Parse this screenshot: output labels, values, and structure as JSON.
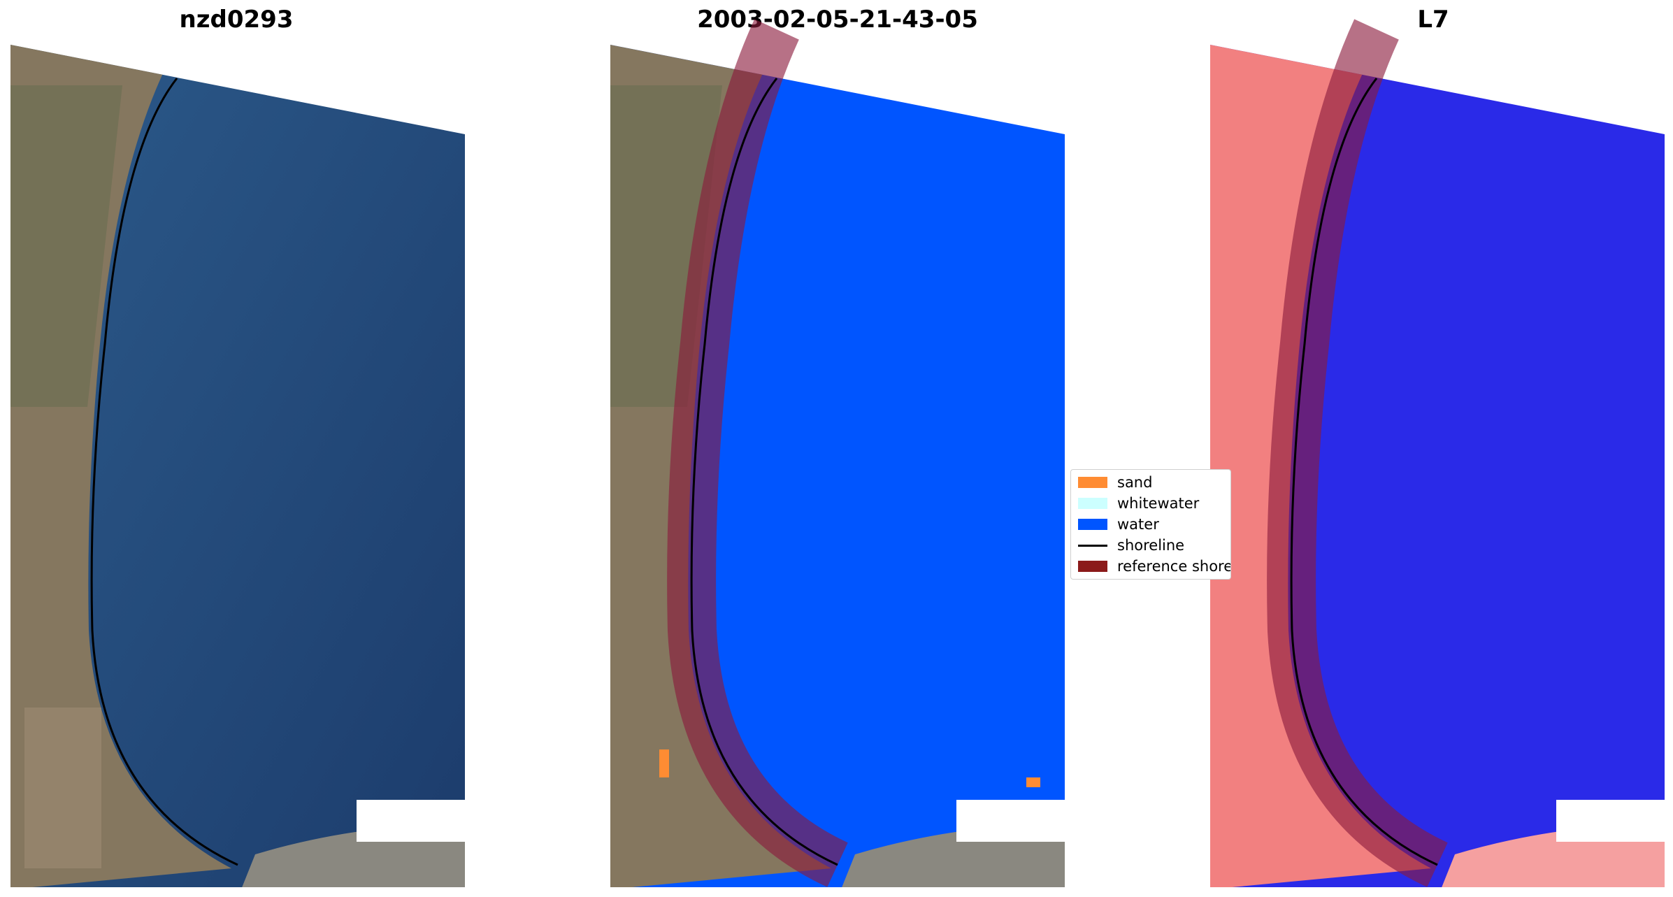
{
  "panels": [
    {
      "title": "nzd0293"
    },
    {
      "title": "2003-02-05-21-43-05"
    },
    {
      "title": "L7"
    }
  ],
  "legend": {
    "items": [
      {
        "label": "sand",
        "color": "#ff8c33",
        "kind": "patch"
      },
      {
        "label": "whitewater",
        "color": "#ccffff",
        "kind": "patch"
      },
      {
        "label": "water",
        "color": "#0055ff",
        "kind": "patch"
      },
      {
        "label": "shoreline",
        "color": "#000000",
        "kind": "line"
      },
      {
        "label": "reference shoreline buffer",
        "color": "#8b1a1a",
        "kind": "patch"
      }
    ]
  },
  "colors": {
    "water_rgb": "#1f4a7a",
    "land_rgb": "#8a7a62",
    "water_class": "#0055ff",
    "buffer": "#8b1a3c",
    "mndwi_water": "#2a2ae8",
    "mndwi_land": "#f28080"
  }
}
